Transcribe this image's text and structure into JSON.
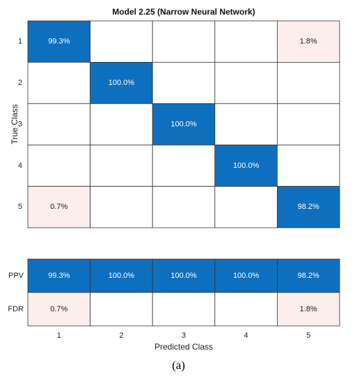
{
  "chart_data": {
    "type": "heatmap",
    "title": "Model 2.25 (Narrow Neural Network)",
    "xlabel": "Predicted Class",
    "ylabel": "True Class",
    "classes": [
      "1",
      "2",
      "3",
      "4",
      "5"
    ],
    "matrix": [
      [
        "99.3%",
        "",
        "",
        "",
        "1.8%"
      ],
      [
        "",
        "100.0%",
        "",
        "",
        ""
      ],
      [
        "",
        "",
        "100.0%",
        "",
        ""
      ],
      [
        "",
        "",
        "",
        "100.0%",
        ""
      ],
      [
        "0.7%",
        "",
        "",
        "",
        "98.2%"
      ]
    ],
    "matrix_values": [
      [
        99.3,
        null,
        null,
        null,
        1.8
      ],
      [
        null,
        100.0,
        null,
        null,
        null
      ],
      [
        null,
        null,
        100.0,
        null,
        null
      ],
      [
        null,
        null,
        null,
        100.0,
        null
      ],
      [
        0.7,
        null,
        null,
        null,
        98.2
      ]
    ],
    "summary_rows": [
      {
        "label": "PPV",
        "cells": [
          "99.3%",
          "100.0%",
          "100.0%",
          "100.0%",
          "98.2%"
        ],
        "values": [
          99.3,
          100.0,
          100.0,
          100.0,
          98.2
        ]
      },
      {
        "label": "FDR",
        "cells": [
          "0.7%",
          "",
          "",
          "",
          "1.8%"
        ],
        "values": [
          0.7,
          null,
          null,
          null,
          1.8
        ]
      }
    ],
    "colors": {
      "high": "#0f6fbf",
      "low": "#fbeeec",
      "empty": "#ffffff",
      "grid": "#333333"
    }
  },
  "caption": "(a)"
}
